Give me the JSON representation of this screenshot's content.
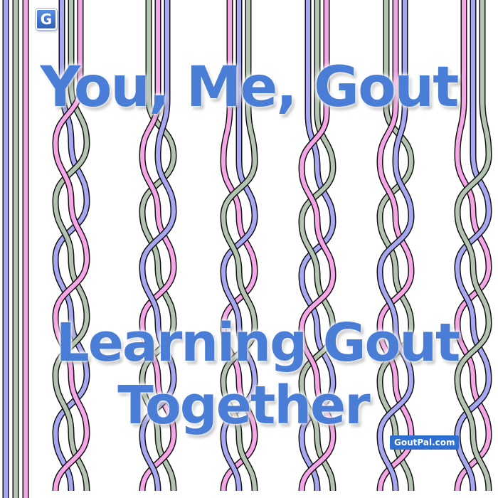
{
  "logo": {
    "letter": "G"
  },
  "title": "You, Me, Gout",
  "subtitle": {
    "line1": "Learning Gout",
    "line2": "Together"
  },
  "brand": "GoutPal.com",
  "colors": {
    "text": "#4a7ed6",
    "strand_blue": "#a7a7f2",
    "strand_green": "#b3c5b1",
    "strand_pink": "#f6a6e6",
    "outline": "#111111"
  }
}
